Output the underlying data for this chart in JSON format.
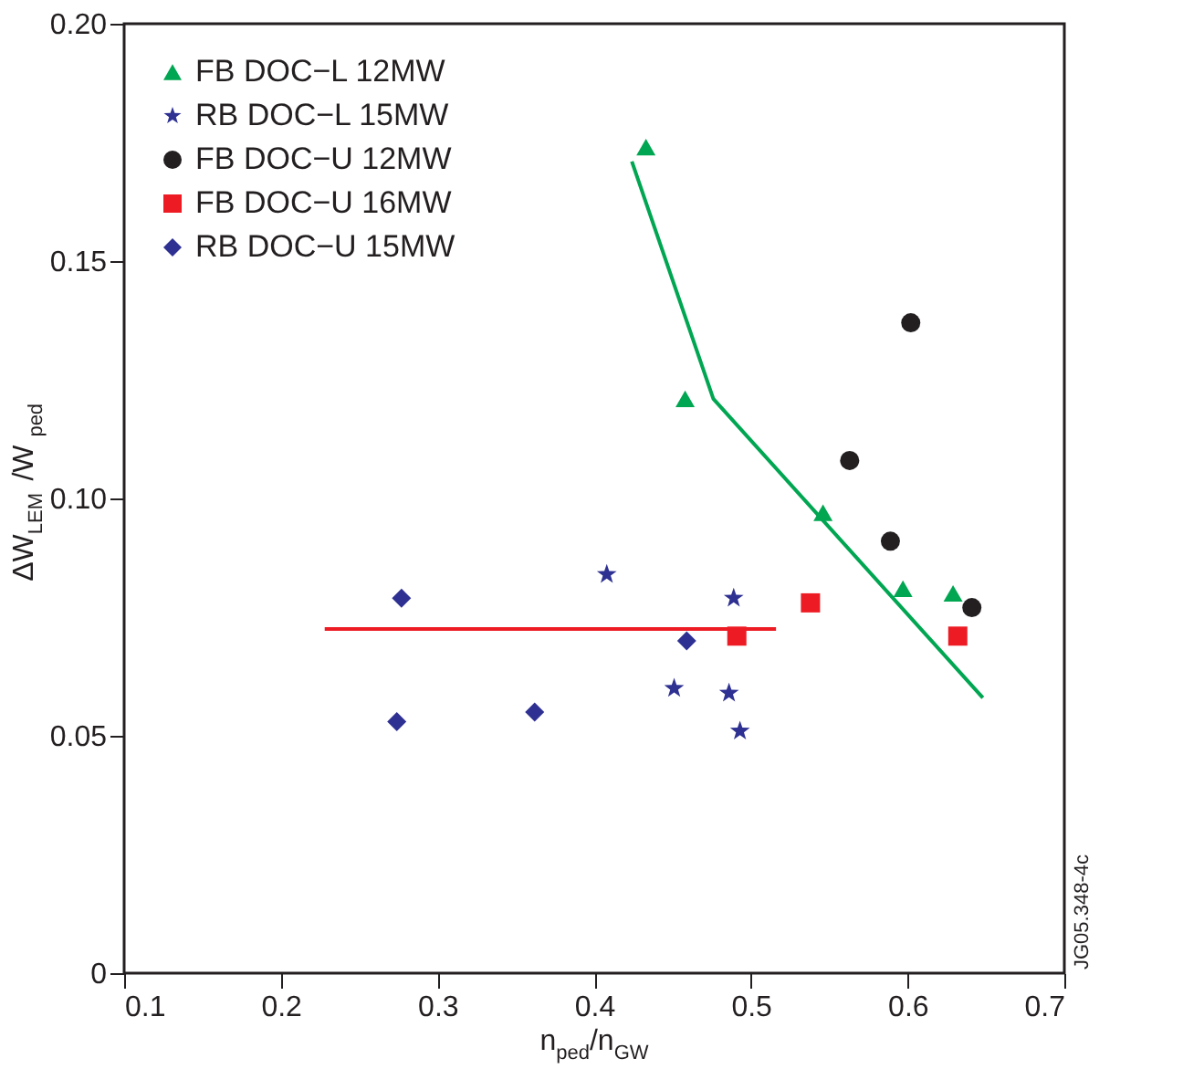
{
  "chart_data": {
    "type": "scatter",
    "xlabel": "n$_{ped}$/n$_{GW}$",
    "ylabel": "ΔW$_{LEM}$ /W$_{ped}$",
    "xlim": [
      0.1,
      0.7
    ],
    "xticks": [
      0.1,
      0.2,
      0.3,
      0.4,
      0.5,
      0.6,
      0.7
    ],
    "ylim": [
      0,
      0.2
    ],
    "yticks": [
      0,
      0.05,
      {
        "value": 0.1,
        "label": "0.10"
      },
      0.15,
      {
        "value": 0.2,
        "label": "0.20"
      }
    ],
    "grid": false,
    "legend": "top left",
    "annotations": [
      "JG05.348-4c"
    ],
    "series": [
      {
        "name": "FB DOC−L 12MW",
        "color": "#00a651",
        "marker": "triangle",
        "x": [
          0.433,
          0.458,
          0.546,
          0.597,
          0.629
        ],
        "values": [
          0.174,
          0.121,
          0.097,
          0.081,
          0.08
        ]
      },
      {
        "name": "RB DOC−L 15MW",
        "color": "#2e3192",
        "marker": "star",
        "x": [
          0.408,
          0.489,
          0.451,
          0.486,
          0.493
        ],
        "values": [
          0.084,
          0.079,
          0.06,
          0.059,
          0.051
        ]
      },
      {
        "name": "FB DOC−U 12MW",
        "color": "#231f20",
        "marker": "circle",
        "x": [
          0.602,
          0.563,
          0.589,
          0.641
        ],
        "values": [
          0.137,
          0.108,
          0.091,
          0.077
        ]
      },
      {
        "name": "FB DOC−U 16MW",
        "color": "#ed1c24",
        "marker": "square",
        "x": [
          0.491,
          0.538,
          0.632
        ],
        "values": [
          0.071,
          0.078,
          0.071
        ]
      },
      {
        "name": "RB DOC−U 15MW",
        "color": "#2e3192",
        "marker": "diamond",
        "x": [
          0.277,
          0.274,
          0.362,
          0.459
        ],
        "values": [
          0.079,
          0.053,
          0.055,
          0.07
        ]
      },
      {
        "type": "line",
        "color": "#00a651",
        "x": [
          0.424,
          0.476,
          0.648
        ],
        "values": [
          0.171,
          0.121,
          0.058
        ]
      },
      {
        "type": "line",
        "color": "#ed1c24",
        "x": [
          0.228,
          0.516
        ],
        "values": [
          0.0725,
          0.0725
        ]
      }
    ]
  }
}
